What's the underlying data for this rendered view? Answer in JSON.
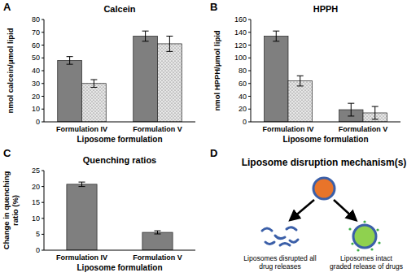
{
  "chart_data": [
    {
      "type": "bar",
      "panel_label": "A",
      "title": "Calcein",
      "xlabel": "Liposome formulation",
      "ylabel": "nmol calcein/μmol lipid",
      "categories": [
        "Formulation IV",
        "Formulation V"
      ],
      "series": [
        {
          "color": "#7f7f7f",
          "values": [
            48,
            67
          ],
          "errors": [
            3,
            4
          ]
        },
        {
          "color": "#e6e6e6",
          "values": [
            30,
            61
          ],
          "errors": [
            3,
            6
          ]
        }
      ],
      "ylim": [
        0,
        80
      ],
      "yticks": [
        0,
        10,
        20,
        30,
        40,
        50,
        60,
        70,
        80
      ],
      "grid": false
    },
    {
      "type": "bar",
      "panel_label": "B",
      "title": "HPPH",
      "xlabel": "Liposome formulation",
      "ylabel": "nmol HPPH/μmol lipid",
      "categories": [
        "Formulation IV",
        "Formulation V"
      ],
      "series": [
        {
          "color": "#7f7f7f",
          "values": [
            134,
            19
          ],
          "errors": [
            8,
            10
          ]
        },
        {
          "color": "#e6e6e6",
          "values": [
            64,
            14
          ],
          "errors": [
            8,
            10
          ]
        }
      ],
      "ylim": [
        0,
        160
      ],
      "yticks": [
        0,
        20,
        40,
        60,
        80,
        100,
        120,
        140,
        160
      ],
      "grid": false
    },
    {
      "type": "bar",
      "panel_label": "C",
      "title": "Quenching ratios",
      "xlabel": "Liposome formulation",
      "ylabel": "Change in quenching ratio (%)",
      "categories": [
        "Formulation IV",
        "Formulation V"
      ],
      "series": [
        {
          "color": "#7f7f7f",
          "values": [
            20.7,
            5.6
          ],
          "errors": [
            0.7,
            0.5
          ]
        }
      ],
      "ylim": [
        0,
        25
      ],
      "yticks": [
        0,
        5,
        10,
        15,
        20,
        25
      ],
      "grid": false
    }
  ],
  "diagram": {
    "panel_label": "D",
    "title": "Liposome disruption mechanism(s)",
    "outcomes": [
      {
        "label": "Liposomes disrupted all drug releases"
      },
      {
        "label": "Liposomes intact graded release of drugs"
      }
    ]
  }
}
